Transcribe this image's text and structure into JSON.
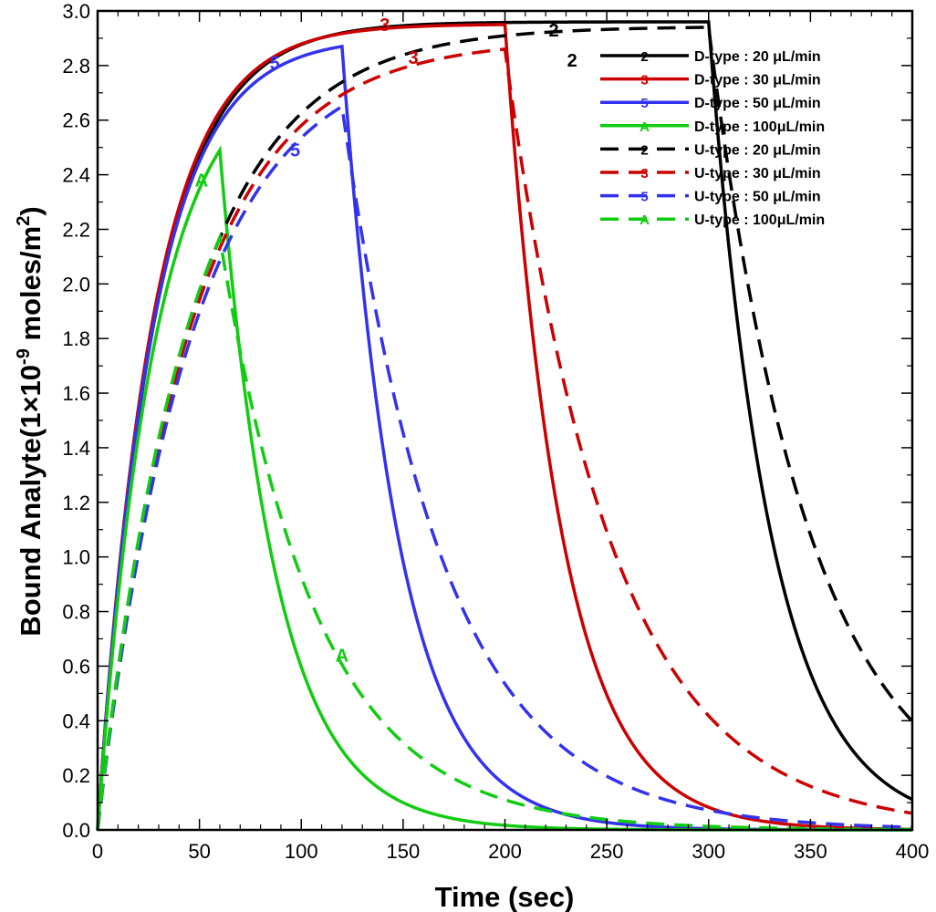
{
  "chart_data": {
    "type": "line",
    "title": "",
    "xlabel": "Time (sec)",
    "ylabel_prefix": "Bound Analyte(1×10",
    "ylabel_exp1": "-9",
    "ylabel_mid": " moles/m",
    "ylabel_exp2": "2",
    "ylabel_suffix": ")",
    "xlim": [
      0,
      400
    ],
    "ylim": [
      0,
      3.0
    ],
    "x_ticks": [
      0,
      50,
      100,
      150,
      200,
      250,
      300,
      350,
      400
    ],
    "x_tick_labels": [
      "0",
      "50",
      "100",
      "150",
      "200",
      "250",
      "300",
      "350",
      "400"
    ],
    "y_ticks": [
      0,
      0.2,
      0.4,
      0.6,
      0.8,
      1.0,
      1.2,
      1.4,
      1.6,
      1.8,
      2.0,
      2.2,
      2.4,
      2.6,
      2.8,
      3.0
    ],
    "y_tick_labels": [
      "0.0",
      "0.2",
      "0.4",
      "0.6",
      "0.8",
      "1.0",
      "1.2",
      "1.4",
      "1.6",
      "1.8",
      "2.0",
      "2.2",
      "2.4",
      "2.6",
      "2.8",
      "3.0"
    ],
    "grid": false,
    "legend_position": "top-right",
    "series": [
      {
        "name": "D-type : 20  μL/min",
        "symbol": "2",
        "color": "#000000",
        "dash": "solid",
        "t_on": 300,
        "peak": 2.96,
        "tau_rise": 28,
        "tau_decay": 30.5,
        "label_at": [
          [
            212,
            2.92
          ],
          [
            296,
            2.93
          ]
        ]
      },
      {
        "name": "D-type : 30  μL/min",
        "symbol": "3",
        "color": "#cc0000",
        "dash": "solid",
        "t_on": 200,
        "peak": 2.95,
        "tau_rise": 27,
        "tau_decay": 28,
        "label_at": [
          [
            143,
            2.95
          ],
          [
            212,
            2.9
          ]
        ]
      },
      {
        "name": "D-type : 50  μL/min",
        "symbol": "5",
        "color": "#3333ee",
        "dash": "solid",
        "t_on": 120,
        "peak": 2.87,
        "tau_rise": 27,
        "tau_decay": 28,
        "label_at": [
          [
            87,
            2.75
          ],
          [
            150,
            2.85
          ]
        ]
      },
      {
        "name": "D-type : 100μL/min",
        "symbol": "A",
        "color": "#11cc11",
        "dash": "solid",
        "t_on": 60,
        "peak": 2.49,
        "tau_rise": 28,
        "tau_decay": 28,
        "label_at": [
          [
            51,
            2.38
          ],
          [
            70,
            2.5
          ]
        ]
      },
      {
        "name": "U-type : 20  μL/min",
        "symbol": "2",
        "color": "#000000",
        "dash": "dashed",
        "t_on": 300,
        "peak": 2.94,
        "tau_rise": 45,
        "tau_decay": 50,
        "label_at": [
          [
            231,
            2.8
          ],
          [
            306,
            2.9
          ]
        ]
      },
      {
        "name": "U-type : 30  μL/min",
        "symbol": "3",
        "color": "#cc0000",
        "dash": "dashed",
        "t_on": 200,
        "peak": 2.86,
        "tau_rise": 45,
        "tau_decay": 52,
        "label_at": [
          [
            155,
            2.82
          ],
          [
            218,
            2.82
          ]
        ]
      },
      {
        "name": "U-type : 50  μL/min",
        "symbol": "5",
        "color": "#3333ee",
        "dash": "dashed",
        "t_on": 120,
        "peak": 2.65,
        "tau_rise": 46,
        "tau_decay": 50,
        "label_at": [
          [
            98,
            2.5
          ],
          [
            152,
            2.55
          ]
        ]
      },
      {
        "name": "U-type : 100μL/min",
        "symbol": "A",
        "color": "#11cc11",
        "dash": "dashed",
        "t_on": 60,
        "peak": 2.17,
        "tau_rise": 45,
        "tau_decay": 47,
        "label_at": [
          [
            122,
            0.65
          ],
          [
            70,
            2.2
          ]
        ]
      }
    ],
    "curve_labels": [
      {
        "text": "2",
        "color": "#000000",
        "x": 224,
        "y": 2.93
      },
      {
        "text": "2",
        "color": "#000000",
        "x": 233,
        "y": 2.82
      },
      {
        "text": "3",
        "color": "#cc0000",
        "x": 141,
        "y": 2.95
      },
      {
        "text": "3",
        "color": "#cc0000",
        "x": 155,
        "y": 2.83
      },
      {
        "text": "5",
        "color": "#3333ee",
        "x": 87,
        "y": 2.81
      },
      {
        "text": "5",
        "color": "#3333ee",
        "x": 97,
        "y": 2.49
      },
      {
        "text": "A",
        "color": "#11cc11",
        "x": 51,
        "y": 2.38
      },
      {
        "text": "A",
        "color": "#11cc11",
        "x": 120,
        "y": 0.64
      }
    ]
  }
}
